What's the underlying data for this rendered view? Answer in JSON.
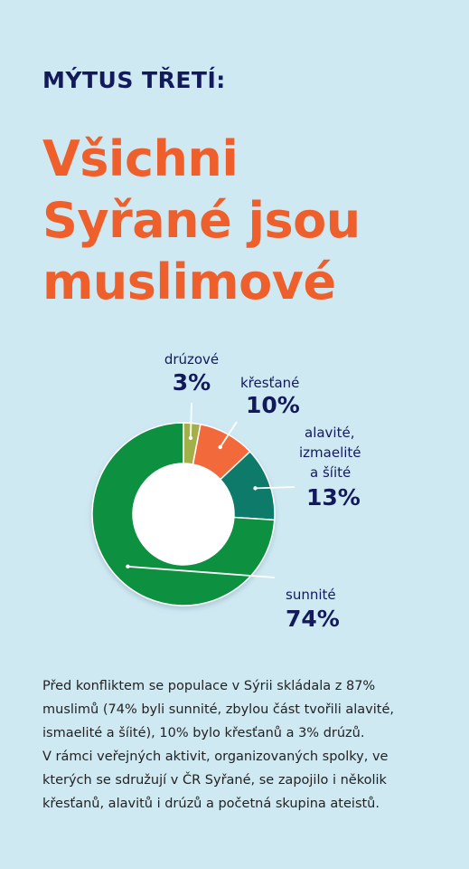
{
  "myth_label": "MÝTUS TŘETÍ:",
  "headline_lines": [
    "Všichni",
    "Syřané jsou",
    "muslimové"
  ],
  "chart_data": {
    "type": "pie",
    "donut": true,
    "title": "",
    "slices": [
      {
        "label": "drúzové",
        "value": 3,
        "value_text": "3%",
        "color": "#a3b04a"
      },
      {
        "label": "křesťané",
        "value": 10,
        "value_text": "10%",
        "color": "#f26b3a"
      },
      {
        "label_lines": [
          "alavité,",
          "izmaelité",
          "a šíité"
        ],
        "value": 13,
        "value_text": "13%",
        "color": "#107a6a"
      },
      {
        "label": "sunnité",
        "value": 74,
        "value_text": "74%",
        "color": "#0d9140"
      }
    ]
  },
  "body_lines": [
    "Před konfliktem se populace v Sýrii skládala z 87%",
    "muslimů (74% byli sunnité, zbylou část tvořili alavité,",
    "ismaelité a šíité), 10% bylo křesťanů a 3% drúzů.",
    "V rámci veřejných aktivit, organizovaných spolky, ve",
    "kterých se sdružují v ČR Syřané, se zapojilo i několik",
    "křesťanů, alavitů i drúzů a početná skupina ateistů."
  ],
  "colors": {
    "background": "#cfe9f3",
    "title_dark": "#121a5c",
    "accent_orange": "#ee5f2c"
  }
}
